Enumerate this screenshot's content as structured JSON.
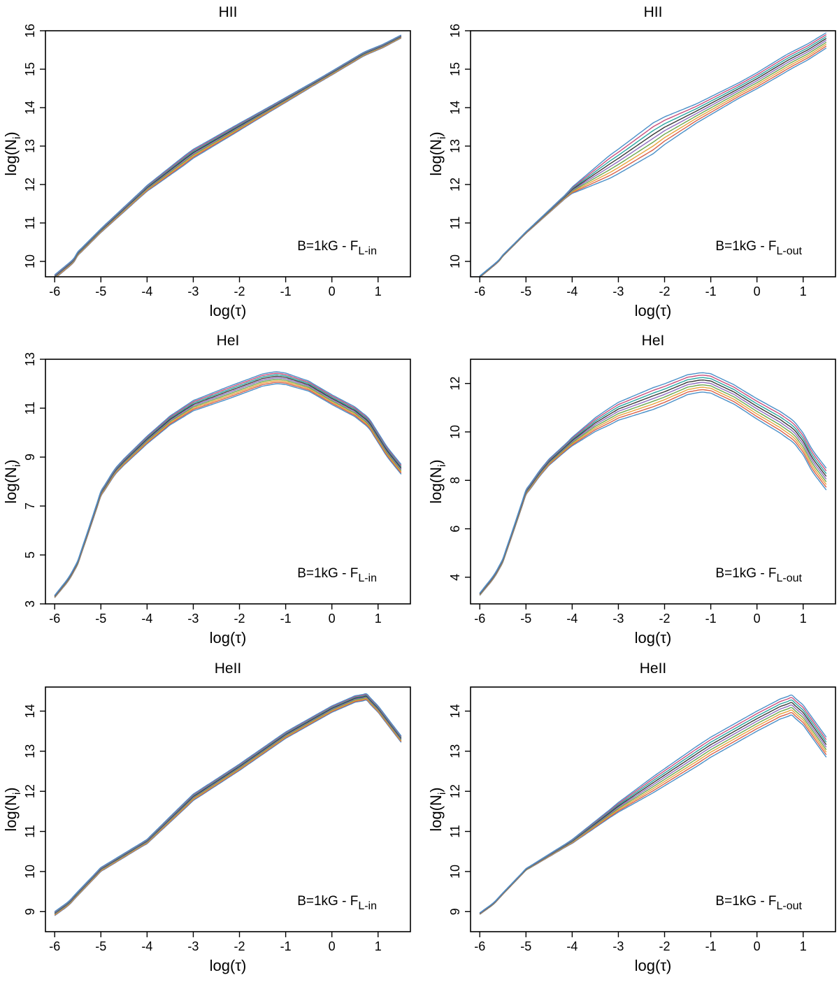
{
  "chart_data": [
    {
      "type": "line",
      "title": "HII",
      "xlabel": "log(τ)",
      "ylabel_main": "log(N",
      "ylabel_sub": "i",
      "ylabel_close": ")",
      "annotation_main": "B=1kG - F",
      "annotation_sub": "L-in",
      "xlim": [
        -6.2,
        1.7
      ],
      "ylim": [
        9.6,
        16
      ],
      "xticks": [
        -6,
        -5,
        -4,
        -3,
        -2,
        -1,
        0,
        1
      ],
      "yticks": [
        10,
        11,
        12,
        13,
        14,
        15,
        16
      ],
      "band_spread": [
        0.05,
        0.05,
        0.07,
        0.12,
        0.1,
        0.07,
        0.05,
        0.05,
        0.04
      ],
      "x": [
        -6,
        -5.6,
        -5.5,
        -5,
        -4,
        -3,
        -2,
        -1,
        0,
        0.7,
        1.1,
        1.5
      ],
      "y": [
        9.6,
        10.0,
        10.2,
        10.8,
        11.9,
        12.8,
        13.5,
        14.2,
        14.9,
        15.4,
        15.6,
        15.85
      ]
    },
    {
      "type": "line",
      "title": "HII",
      "xlabel": "log(τ)",
      "ylabel_main": "log(N",
      "ylabel_sub": "i",
      "ylabel_close": ")",
      "annotation_main": "B=1kG - F",
      "annotation_sub": "L-out",
      "xlim": [
        -6.2,
        1.7
      ],
      "ylim": [
        9.6,
        16
      ],
      "xticks": [
        -6,
        -5,
        -4,
        -3,
        -2,
        -1,
        0,
        1
      ],
      "yticks": [
        10,
        11,
        12,
        13,
        14,
        15,
        16
      ],
      "band_spread": [
        0.02,
        0.02,
        0.05,
        0.3,
        0.4,
        0.25,
        0.2,
        0.22,
        0.2
      ],
      "x": [
        -6,
        -5.6,
        -5.5,
        -5,
        -4,
        -3,
        -2,
        -1,
        0,
        0.7,
        1.1,
        1.5
      ],
      "y": [
        9.6,
        10.0,
        10.15,
        10.75,
        11.85,
        12.6,
        13.4,
        14.05,
        14.7,
        15.2,
        15.45,
        15.75
      ]
    },
    {
      "type": "line",
      "title": "HeI",
      "xlabel": "log(τ)",
      "ylabel_main": "log(N",
      "ylabel_sub": "i",
      "ylabel_close": ")",
      "annotation_main": "B=1kG - F",
      "annotation_sub": "L-in",
      "xlim": [
        -6.2,
        1.7
      ],
      "ylim": [
        3,
        13
      ],
      "xticks": [
        -6,
        -5,
        -4,
        -3,
        -2,
        -1,
        0,
        1
      ],
      "yticks": [
        3,
        5,
        7,
        9,
        11,
        13
      ],
      "band_spread": [
        0.05,
        0.1,
        0.15,
        0.2,
        0.25,
        0.25,
        0.2,
        0.2,
        0.2
      ],
      "x": [
        -6,
        -5.7,
        -5.55,
        -5.5,
        -5.3,
        -5.0,
        -4.7,
        -4.5,
        -4,
        -3.5,
        -3,
        -2.5,
        -2,
        -1.5,
        -1.2,
        -1,
        -0.5,
        0,
        0.5,
        0.8,
        1.0,
        1.2,
        1.5
      ],
      "y": [
        3.3,
        4.0,
        4.5,
        4.7,
        5.8,
        7.5,
        8.4,
        8.8,
        9.7,
        10.5,
        11.1,
        11.45,
        11.8,
        12.15,
        12.25,
        12.2,
        11.9,
        11.35,
        10.85,
        10.4,
        9.8,
        9.2,
        8.5
      ]
    },
    {
      "type": "line",
      "title": "HeI",
      "xlabel": "log(τ)",
      "ylabel_main": "log(N",
      "ylabel_sub": "i",
      "ylabel_close": ")",
      "annotation_main": "B=1kG - F",
      "annotation_sub": "L-out",
      "xlim": [
        -6.2,
        1.7
      ],
      "ylim": [
        2.9,
        13
      ],
      "xticks": [
        -6,
        -5,
        -4,
        -3,
        -2,
        -1,
        0,
        1
      ],
      "yticks": [
        4,
        6,
        8,
        10,
        12
      ],
      "band_spread": [
        0.05,
        0.1,
        0.15,
        0.35,
        0.45,
        0.4,
        0.4,
        0.45,
        0.45
      ],
      "x": [
        -6,
        -5.7,
        -5.55,
        -5.5,
        -5.3,
        -5.0,
        -4.7,
        -4.5,
        -4,
        -3.5,
        -3,
        -2.5,
        -2,
        -1.5,
        -1.2,
        -1,
        -0.5,
        0,
        0.5,
        0.8,
        1.0,
        1.2,
        1.5
      ],
      "y": [
        3.3,
        4.0,
        4.5,
        4.7,
        5.8,
        7.5,
        8.3,
        8.75,
        9.6,
        10.3,
        10.85,
        11.2,
        11.55,
        11.95,
        12.05,
        12.0,
        11.55,
        10.95,
        10.4,
        10.0,
        9.5,
        8.8,
        8.05
      ]
    },
    {
      "type": "line",
      "title": "HeII",
      "xlabel": "log(τ)",
      "ylabel_main": "log(N",
      "ylabel_sub": "i",
      "ylabel_close": ")",
      "annotation_main": "B=1kG - F",
      "annotation_sub": "L-in",
      "xlim": [
        -6.2,
        1.7
      ],
      "ylim": [
        8.5,
        14.6
      ],
      "xticks": [
        -6,
        -5,
        -4,
        -3,
        -2,
        -1,
        0,
        1
      ],
      "yticks": [
        9,
        10,
        11,
        12,
        13,
        14
      ],
      "band_spread": [
        0.05,
        0.05,
        0.05,
        0.08,
        0.08,
        0.08,
        0.08,
        0.08,
        0.08
      ],
      "x": [
        -6,
        -5.7,
        -5.5,
        -5,
        -4.5,
        -4,
        -3,
        -2,
        -1,
        0,
        0.5,
        0.75,
        1.0,
        1.5
      ],
      "y": [
        8.95,
        9.2,
        9.45,
        10.05,
        10.4,
        10.75,
        11.85,
        12.6,
        13.4,
        14.05,
        14.3,
        14.35,
        14.05,
        13.3
      ]
    },
    {
      "type": "line",
      "title": "HeII",
      "xlabel": "log(τ)",
      "ylabel_main": "log(N",
      "ylabel_sub": "i",
      "ylabel_close": ")",
      "annotation_main": "B=1kG - F",
      "annotation_sub": "L-out",
      "xlim": [
        -6.2,
        1.7
      ],
      "ylim": [
        8.5,
        14.6
      ],
      "xticks": [
        -6,
        -5,
        -4,
        -3,
        -2,
        -1,
        0,
        1
      ],
      "yticks": [
        9,
        10,
        11,
        12,
        13,
        14
      ],
      "band_spread": [
        0.02,
        0.02,
        0.04,
        0.1,
        0.2,
        0.25,
        0.25,
        0.25,
        0.25
      ],
      "x": [
        -6,
        -5.7,
        -5.5,
        -5,
        -4.5,
        -4,
        -3,
        -2,
        -1,
        0,
        0.5,
        0.75,
        1.0,
        1.5
      ],
      "y": [
        8.95,
        9.2,
        9.45,
        10.05,
        10.4,
        10.75,
        11.6,
        12.35,
        13.1,
        13.75,
        14.05,
        14.15,
        13.9,
        13.1
      ]
    }
  ],
  "palette": [
    "#4a90c8",
    "#d9614a",
    "#e8a33d",
    "#6aa84f",
    "#8e6cbf",
    "#3a3a3a",
    "#2aa5a0",
    "#c94f7c"
  ]
}
